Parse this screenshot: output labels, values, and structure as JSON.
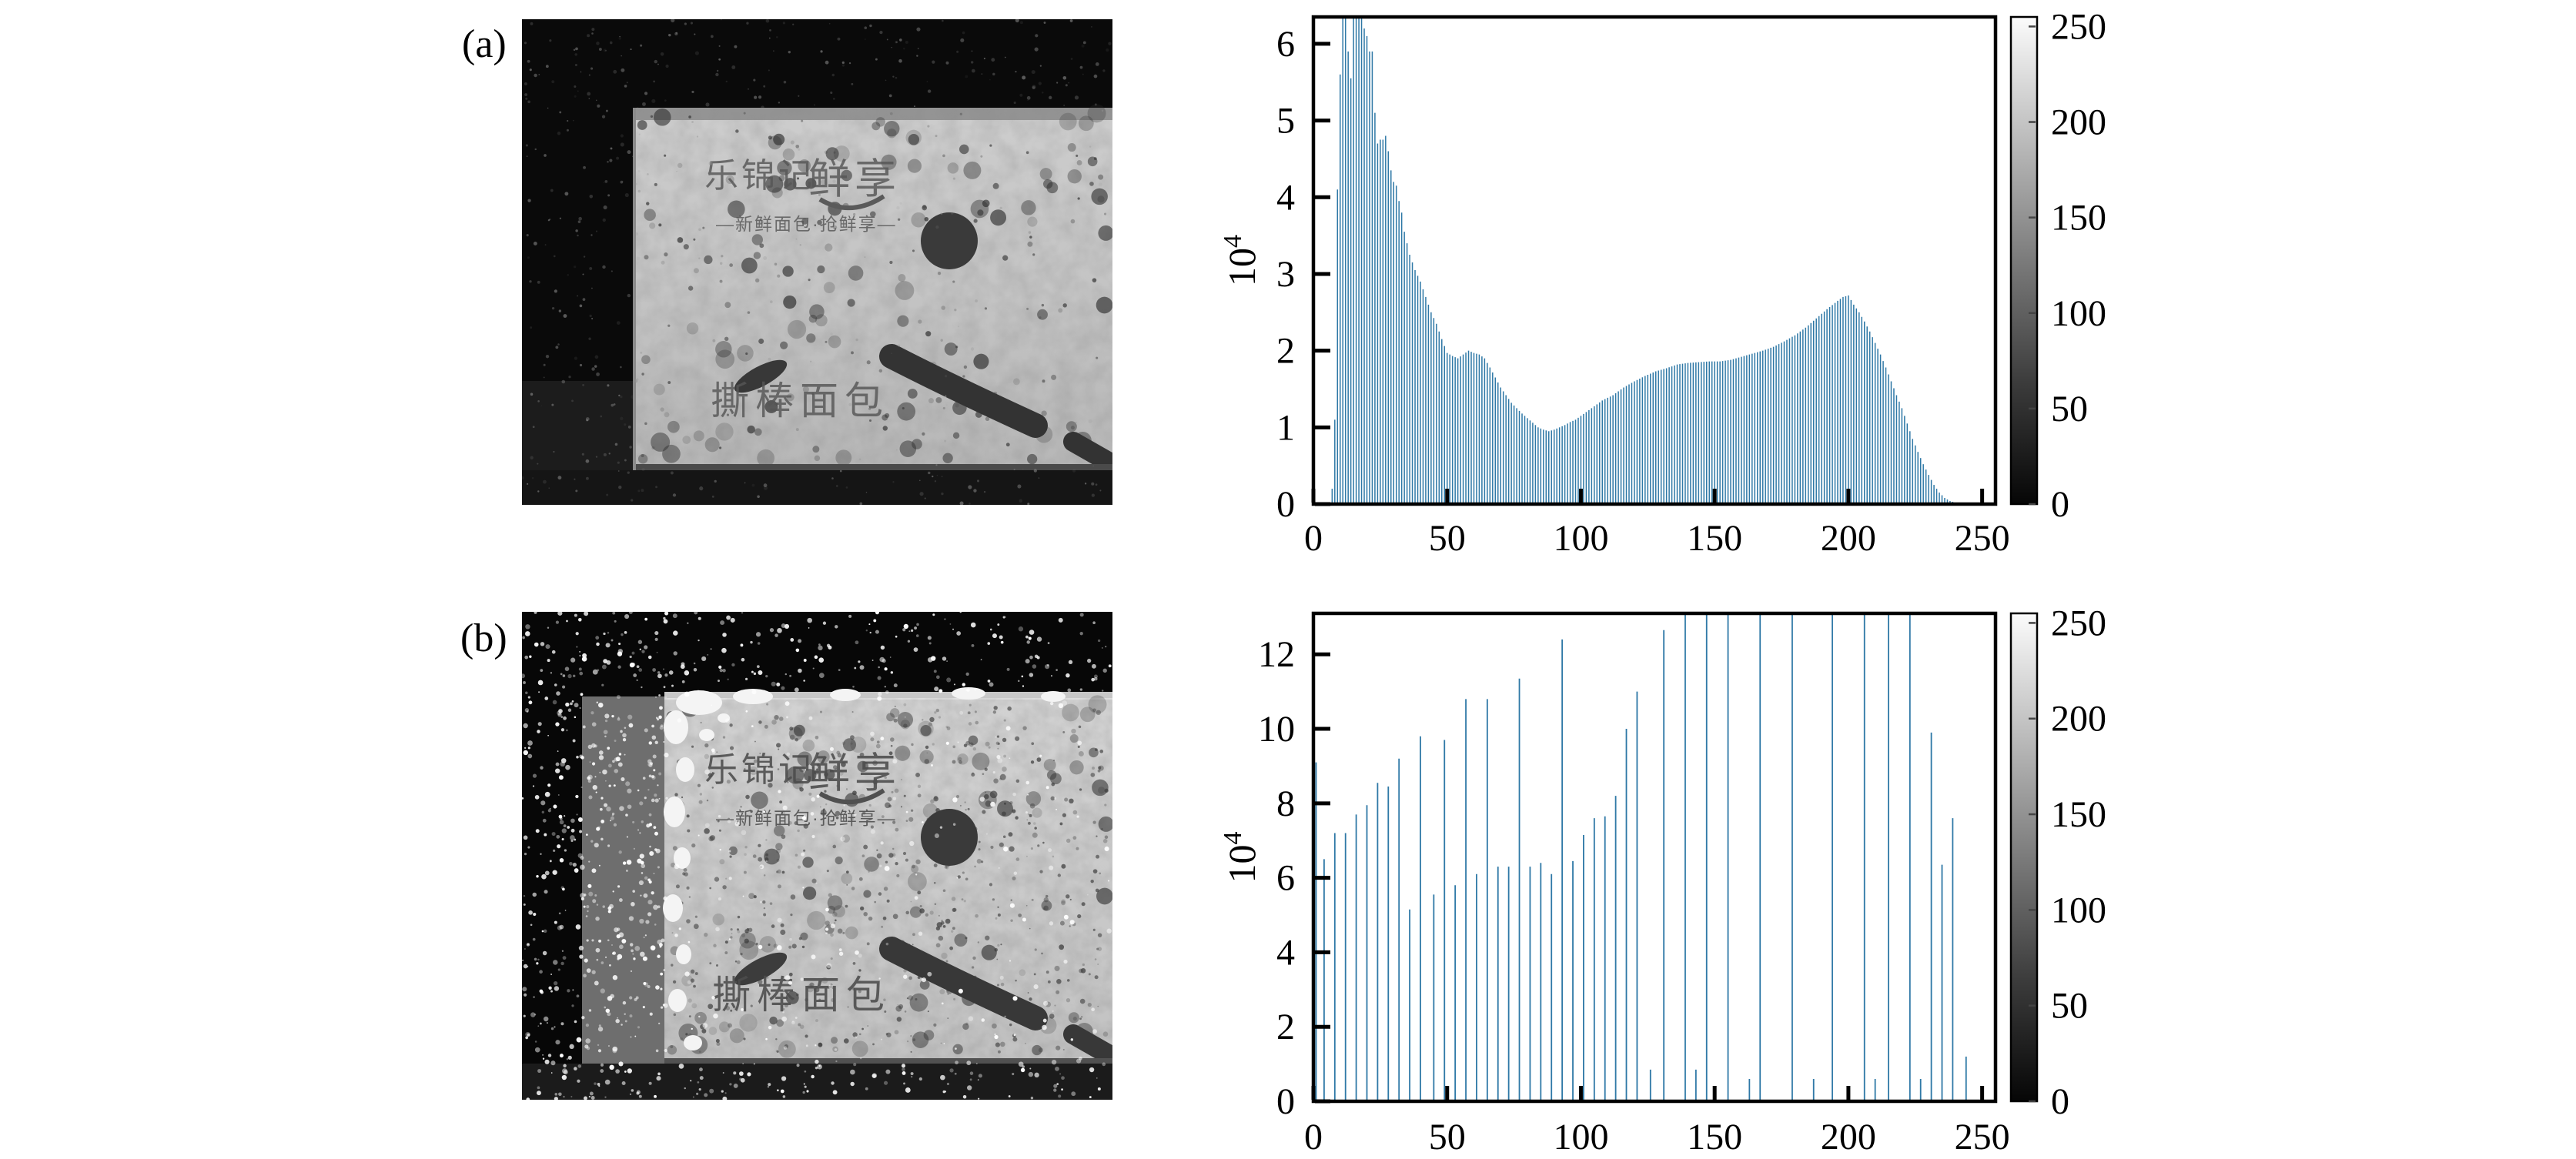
{
  "figure": {
    "panel_a_label": "(a)",
    "panel_b_label": "(b)",
    "colors": {
      "bar_blue": "#2e78a6",
      "frame_black": "#000000",
      "colorbar_dark": "#060606",
      "colorbar_light": "#fbfbfb",
      "background": "#ffffff"
    }
  },
  "package_text": {
    "brand": "乐锦记",
    "brand2": "鲜享",
    "tagline": "—新鲜面包·抢鲜享—",
    "product": "撕棒面包"
  },
  "image_a": {
    "description": "original grayscale speckle image of bread package, dark background with faint gray speckles, bright package with dark bubbles"
  },
  "image_b": {
    "description": "histogram-equalized grayscale image, dense white speckles on dark background, brighter package with dark dots and white patches"
  },
  "chart_data": [
    {
      "name": "histogram-a",
      "type": "bar",
      "title": "",
      "xlabel": "",
      "ylabel_base": "10",
      "ylabel_exp": "4",
      "xlim": [
        0,
        255
      ],
      "ylim": [
        0,
        6.35
      ],
      "xticks": [
        0,
        50,
        100,
        150,
        200,
        250
      ],
      "yticks": [
        0,
        1,
        2,
        3,
        4,
        5,
        6
      ],
      "grid": false,
      "legend": "none",
      "units": "counts x 10^4 per gray level",
      "envelope_points": [
        [
          6,
          0
        ],
        [
          7,
          0.2
        ],
        [
          8,
          1.1
        ],
        [
          9,
          4.1
        ],
        [
          10,
          5.6
        ],
        [
          11,
          6.4
        ],
        [
          12,
          6.4
        ],
        [
          13,
          5.9
        ],
        [
          14,
          5.55
        ],
        [
          15,
          6.4
        ],
        [
          16,
          6.4
        ],
        [
          17,
          6.4
        ],
        [
          18,
          6.4
        ],
        [
          19,
          6.2
        ],
        [
          20,
          6.1
        ],
        [
          21,
          5.9
        ],
        [
          22,
          5.9
        ],
        [
          23,
          5.1
        ],
        [
          24,
          4.7
        ],
        [
          25,
          4.75
        ],
        [
          26,
          4.75
        ],
        [
          27,
          4.8
        ],
        [
          28,
          4.6
        ],
        [
          29,
          4.35
        ],
        [
          30,
          4.2
        ],
        [
          31,
          4.15
        ],
        [
          32,
          3.95
        ],
        [
          33,
          3.8
        ],
        [
          34,
          3.55
        ],
        [
          35,
          3.4
        ],
        [
          36,
          3.25
        ],
        [
          38,
          3.05
        ],
        [
          40,
          2.9
        ],
        [
          42,
          2.7
        ],
        [
          44,
          2.5
        ],
        [
          46,
          2.35
        ],
        [
          48,
          2.15
        ],
        [
          50,
          1.97
        ],
        [
          52,
          1.93
        ],
        [
          54,
          1.9
        ],
        [
          56,
          1.95
        ],
        [
          58,
          2.0
        ],
        [
          60,
          1.97
        ],
        [
          62,
          1.95
        ],
        [
          64,
          1.9
        ],
        [
          66,
          1.78
        ],
        [
          68,
          1.65
        ],
        [
          70,
          1.52
        ],
        [
          72,
          1.42
        ],
        [
          74,
          1.32
        ],
        [
          76,
          1.25
        ],
        [
          78,
          1.18
        ],
        [
          80,
          1.12
        ],
        [
          82,
          1.06
        ],
        [
          84,
          1.0
        ],
        [
          86,
          0.97
        ],
        [
          88,
          0.95
        ],
        [
          90,
          0.97
        ],
        [
          92,
          1.0
        ],
        [
          94,
          1.03
        ],
        [
          96,
          1.07
        ],
        [
          98,
          1.1
        ],
        [
          100,
          1.15
        ],
        [
          104,
          1.25
        ],
        [
          108,
          1.35
        ],
        [
          112,
          1.42
        ],
        [
          116,
          1.52
        ],
        [
          120,
          1.6
        ],
        [
          124,
          1.67
        ],
        [
          128,
          1.73
        ],
        [
          132,
          1.77
        ],
        [
          136,
          1.82
        ],
        [
          140,
          1.84
        ],
        [
          144,
          1.85
        ],
        [
          148,
          1.86
        ],
        [
          152,
          1.86
        ],
        [
          156,
          1.88
        ],
        [
          160,
          1.92
        ],
        [
          164,
          1.96
        ],
        [
          168,
          2.0
        ],
        [
          172,
          2.05
        ],
        [
          176,
          2.12
        ],
        [
          180,
          2.2
        ],
        [
          184,
          2.3
        ],
        [
          188,
          2.42
        ],
        [
          192,
          2.54
        ],
        [
          196,
          2.65
        ],
        [
          198,
          2.7
        ],
        [
          200,
          2.72
        ],
        [
          202,
          2.6
        ],
        [
          204,
          2.5
        ],
        [
          206,
          2.38
        ],
        [
          208,
          2.25
        ],
        [
          210,
          2.1
        ],
        [
          212,
          1.95
        ],
        [
          214,
          1.78
        ],
        [
          216,
          1.6
        ],
        [
          218,
          1.42
        ],
        [
          220,
          1.25
        ],
        [
          222,
          1.05
        ],
        [
          224,
          0.85
        ],
        [
          226,
          0.68
        ],
        [
          228,
          0.52
        ],
        [
          230,
          0.38
        ],
        [
          232,
          0.25
        ],
        [
          234,
          0.15
        ],
        [
          236,
          0.08
        ],
        [
          238,
          0.04
        ],
        [
          240,
          0.02
        ],
        [
          242,
          0.01
        ],
        [
          243,
          0
        ]
      ],
      "colorbar": {
        "min": 0,
        "max": 255,
        "ticks": [
          0,
          50,
          100,
          150,
          200,
          250
        ]
      }
    },
    {
      "name": "histogram-b",
      "type": "bar",
      "title": "",
      "xlabel": "",
      "ylabel_base": "10",
      "ylabel_exp": "4",
      "xlim": [
        0,
        255
      ],
      "ylim": [
        0,
        13.1
      ],
      "xticks": [
        0,
        50,
        100,
        150,
        200,
        250
      ],
      "yticks": [
        0,
        2,
        4,
        6,
        8,
        10,
        12
      ],
      "grid": false,
      "legend": "none",
      "units": "counts x 10^4 per gray level; value 13.5 means clipped at top of axis",
      "spikes": [
        [
          1,
          9.1
        ],
        [
          4,
          6.5
        ],
        [
          8,
          7.2
        ],
        [
          12,
          7.2
        ],
        [
          16,
          7.7
        ],
        [
          20,
          7.95
        ],
        [
          24,
          8.55
        ],
        [
          28,
          8.45
        ],
        [
          32,
          9.2
        ],
        [
          36,
          5.15
        ],
        [
          40,
          9.8
        ],
        [
          45,
          5.55
        ],
        [
          49,
          9.7
        ],
        [
          53,
          5.8
        ],
        [
          57,
          10.8
        ],
        [
          61,
          6.1
        ],
        [
          65,
          10.8
        ],
        [
          69,
          6.3
        ],
        [
          73,
          6.3
        ],
        [
          77,
          11.35
        ],
        [
          81,
          6.3
        ],
        [
          85,
          6.4
        ],
        [
          89,
          6.1
        ],
        [
          93,
          12.4
        ],
        [
          97,
          6.45
        ],
        [
          101,
          7.15
        ],
        [
          105,
          7.6
        ],
        [
          109,
          7.65
        ],
        [
          113,
          8.2
        ],
        [
          117,
          10.0
        ],
        [
          121,
          11.0
        ],
        [
          126,
          0.85
        ],
        [
          131,
          12.65
        ],
        [
          139,
          13.5
        ],
        [
          143,
          0.85
        ],
        [
          147,
          13.5
        ],
        [
          155,
          13.5
        ],
        [
          163,
          0.6
        ],
        [
          167,
          13.5
        ],
        [
          179,
          13.5
        ],
        [
          187,
          0.6
        ],
        [
          194,
          13.5
        ],
        [
          206,
          13.5
        ],
        [
          210,
          0.6
        ],
        [
          215,
          13.5
        ],
        [
          223,
          13.5
        ],
        [
          227,
          0.6
        ],
        [
          231,
          9.9
        ],
        [
          235,
          6.35
        ],
        [
          239,
          7.6
        ],
        [
          244,
          1.2
        ]
      ],
      "colorbar": {
        "min": 0,
        "max": 255,
        "ticks": [
          0,
          50,
          100,
          150,
          200,
          250
        ]
      }
    }
  ]
}
